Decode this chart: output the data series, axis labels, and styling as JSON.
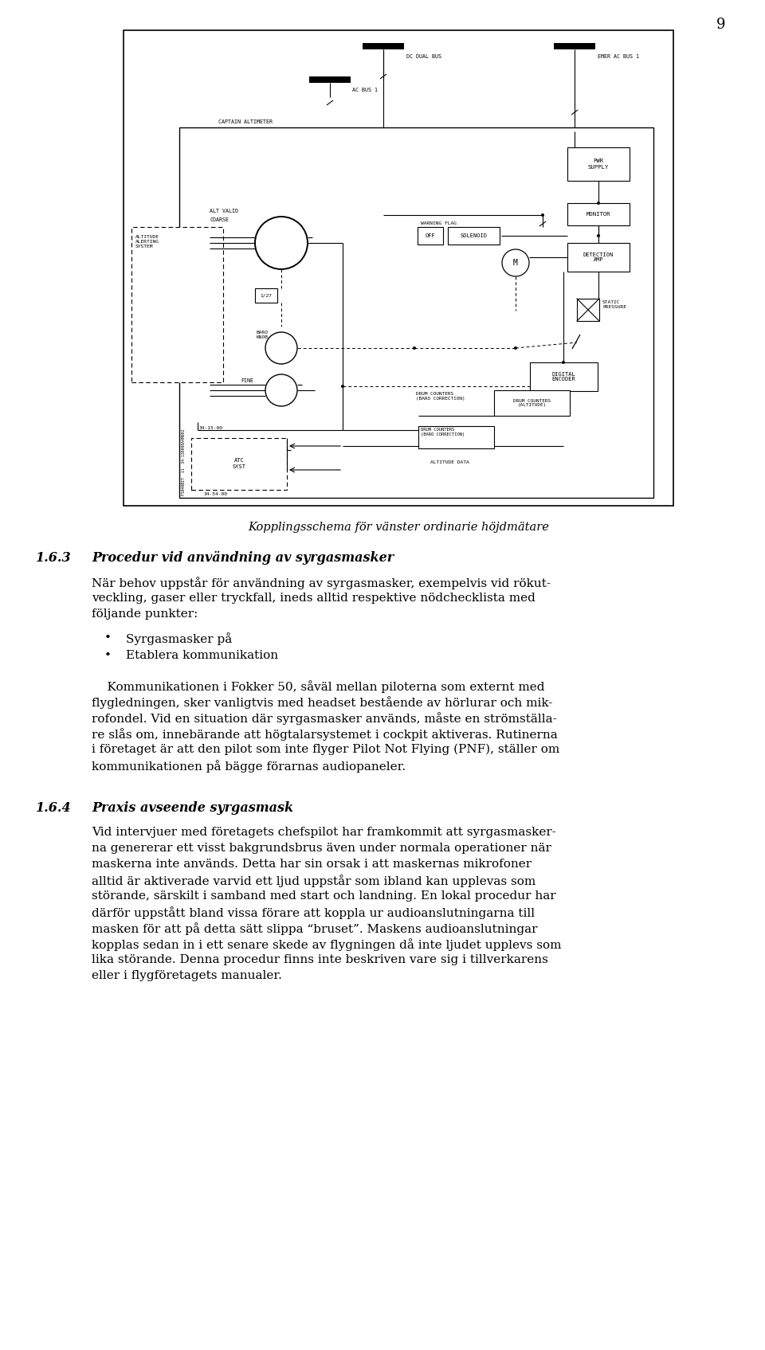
{
  "page_number": "9",
  "background_color": "#ffffff",
  "diagram_caption": "Kopplingsschema för vänster ordinarie höjdmätare",
  "section_163_num": "1.6.3",
  "section_163_title": "Procedur vid användning av syrgasmasker",
  "section_163_para1_lines": [
    "När behov uppstår för användning av syrgasmasker, exempelvis vid rökut-",
    "veckling, gaser eller tryckfall, ineds alltid respektive nödchecklista med",
    "följande punkter:"
  ],
  "bullet1": "Syrgasmasker på",
  "bullet2": "Etablera kommunikation",
  "section_163_para2_lines": [
    "    Kommunikationen i Fokker 50, såväl mellan piloterna som externt med",
    "flygledningen, sker vanligtvis med headset bestående av hörlurar och mik-",
    "rofondel. Vid en situation där syrgasmasker används, måste en strömställa-",
    "re slås om, innebärande att högtalarsystemet i cockpit aktiveras. Rutinerna",
    "i företaget är att den pilot som inte flyger Pilot Not Flying (PNF), ställer om",
    "kommunikationen på bägge förarnas audiopaneler."
  ],
  "section_164_num": "1.6.4",
  "section_164_title": "Praxis avseende syrgasmask",
  "section_164_para1_lines": [
    "Vid intervjuer med företagets chefspilot har framkommit att syrgasmasker-",
    "na genererar ett visst bakgrundsbrus även under normala operationer när",
    "maskerna inte används. Detta har sin orsak i att maskernas mikrofoner",
    "alltid är aktiverade varvid ett ljud uppstår som ibland kan upplevas som",
    "störande, särskilt i samband med start och landning. En lokal procedur har",
    "därför uppstått bland vissa förare att koppla ur audioanslutningarna till",
    "masken för att på detta sätt slippa “bruset”. Maskens audioanslutningar",
    "kopplas sedan in i ett senare skede av flygningen då inte ljudet upplevs som",
    "lika störande. Denna procedur finns inte beskriven vare sig i tillverkarens",
    "eller i flygföretagets manualer."
  ],
  "font_serif": "DejaVu Serif",
  "font_mono": "DejaVu Sans Mono",
  "text_color": "#000000"
}
